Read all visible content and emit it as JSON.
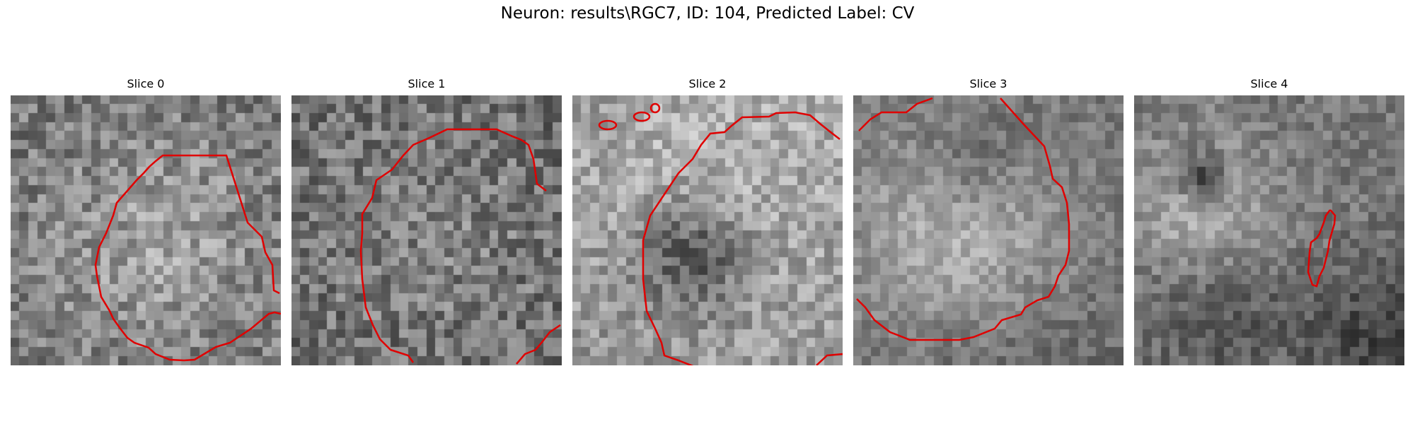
{
  "figure": {
    "suptitle": "Neuron: results\\RGC7, ID: 104, Predicted Label: CV"
  },
  "panels": [
    {
      "title": "Slice 0"
    },
    {
      "title": "Slice 1"
    },
    {
      "title": "Slice 2"
    },
    {
      "title": "Slice 3"
    },
    {
      "title": "Slice 4"
    }
  ],
  "colors": {
    "contour": "#e00000",
    "background": "#ffffff"
  },
  "image": {
    "colormap": "grayscale",
    "grid": "30x30 pixel patch"
  }
}
